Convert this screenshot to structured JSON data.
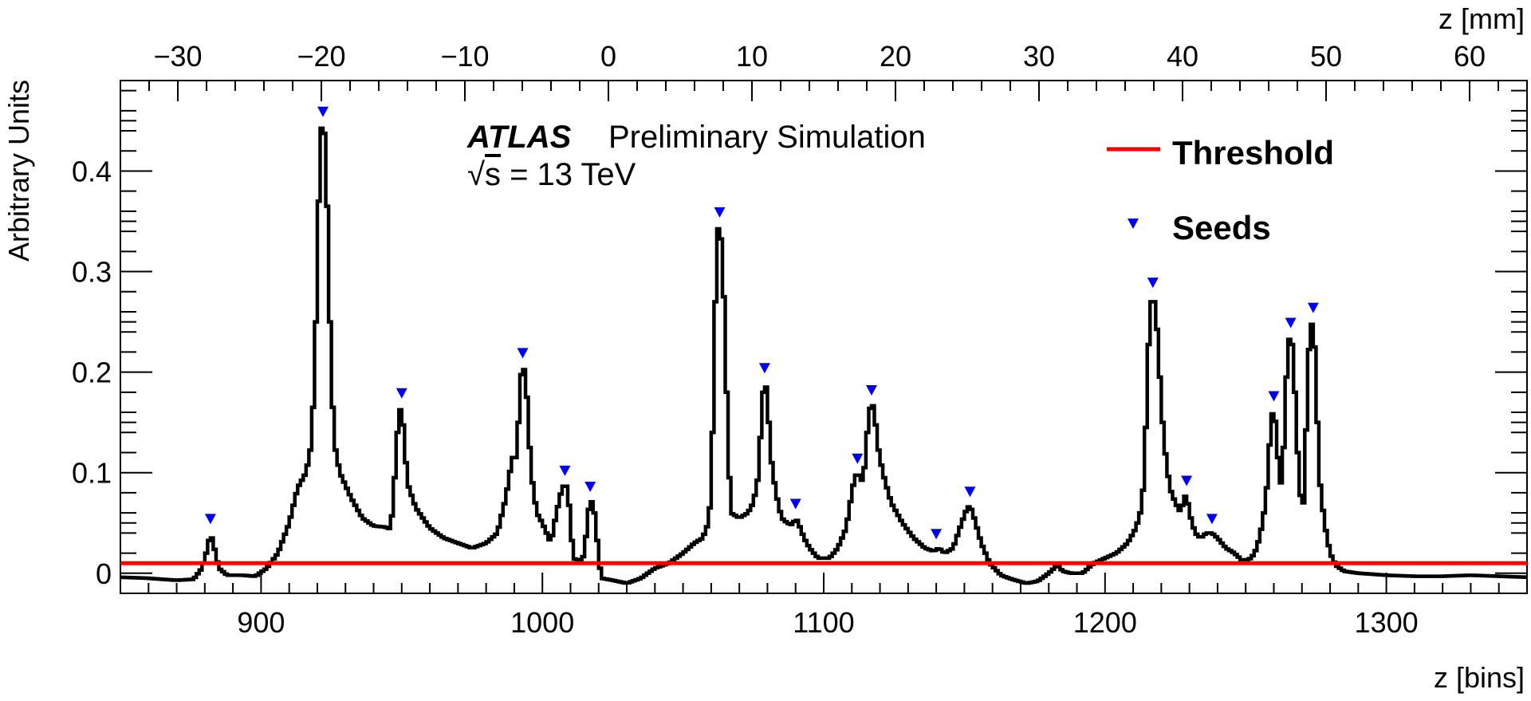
{
  "header": {
    "experiment": "ATLAS",
    "tag": "Preliminary Simulation",
    "energy_sqrt": "√",
    "energy_s": "s",
    "energy_value": " = 13 TeV"
  },
  "legend": {
    "threshold_label": "Threshold",
    "seeds_label": "Seeds"
  },
  "colors": {
    "histogram": "#000000",
    "threshold": "#ff0000",
    "seeds": "#0000ee"
  },
  "chart_data": {
    "type": "line",
    "xlabel": "z [bins]",
    "x2label": "z [mm]",
    "ylabel": "Arbitrary Units",
    "xlim": [
      850,
      1350
    ],
    "ylim": [
      -0.02,
      0.49
    ],
    "x2lim": [
      -34,
      64
    ],
    "xticks": [
      900,
      1000,
      1100,
      1200,
      1300
    ],
    "x2ticks": [
      -30,
      -20,
      -10,
      0,
      10,
      20,
      30,
      40,
      50,
      60
    ],
    "x2ticklabels": [
      "−30",
      "−20",
      "−10",
      "0",
      "10",
      "20",
      "30",
      "40",
      "50",
      "60"
    ],
    "yticks": [
      0,
      0.1,
      0.2,
      0.3,
      0.4
    ],
    "yticklabels": [
      "0",
      "0.1",
      "0.2",
      "0.3",
      "0.4"
    ],
    "threshold": 0.01,
    "legend_position": "top-right",
    "histogram_points": [
      [
        850,
        -0.004
      ],
      [
        860,
        -0.005
      ],
      [
        870,
        -0.007
      ],
      [
        876,
        -0.006
      ],
      [
        879,
        0.005
      ],
      [
        881,
        0.025
      ],
      [
        882,
        0.04
      ],
      [
        883,
        0.03
      ],
      [
        885,
        0.005
      ],
      [
        888,
        -0.002
      ],
      [
        893,
        -0.002
      ],
      [
        898,
        -0.003
      ],
      [
        902,
        0.005
      ],
      [
        906,
        0.02
      ],
      [
        910,
        0.05
      ],
      [
        913,
        0.085
      ],
      [
        916,
        0.1
      ],
      [
        918,
        0.13
      ],
      [
        919,
        0.2
      ],
      [
        920,
        0.3
      ],
      [
        921,
        0.44
      ],
      [
        922,
        0.445
      ],
      [
        923,
        0.43
      ],
      [
        924,
        0.3
      ],
      [
        925,
        0.2
      ],
      [
        926,
        0.13
      ],
      [
        928,
        0.1
      ],
      [
        932,
        0.075
      ],
      [
        936,
        0.055
      ],
      [
        940,
        0.047
      ],
      [
        944,
        0.046
      ],
      [
        946,
        0.044
      ],
      [
        947,
        0.07
      ],
      [
        948,
        0.12
      ],
      [
        949,
        0.16
      ],
      [
        950,
        0.165
      ],
      [
        951,
        0.13
      ],
      [
        952,
        0.09
      ],
      [
        955,
        0.065
      ],
      [
        960,
        0.045
      ],
      [
        965,
        0.035
      ],
      [
        970,
        0.03
      ],
      [
        975,
        0.025
      ],
      [
        980,
        0.03
      ],
      [
        984,
        0.04
      ],
      [
        987,
        0.075
      ],
      [
        989,
        0.11
      ],
      [
        990,
        0.12
      ],
      [
        991,
        0.11
      ],
      [
        992,
        0.19
      ],
      [
        993,
        0.205
      ],
      [
        994,
        0.2
      ],
      [
        995,
        0.15
      ],
      [
        996,
        0.1
      ],
      [
        998,
        0.06
      ],
      [
        1000,
        0.05
      ],
      [
        1003,
        0.03
      ],
      [
        1005,
        0.06
      ],
      [
        1007,
        0.085
      ],
      [
        1008,
        0.088
      ],
      [
        1009,
        0.085
      ],
      [
        1010,
        0.05
      ],
      [
        1011,
        0.015
      ],
      [
        1013,
        0.012
      ],
      [
        1015,
        0.018
      ],
      [
        1016,
        0.055
      ],
      [
        1017,
        0.072
      ],
      [
        1018,
        0.07
      ],
      [
        1019,
        0.05
      ],
      [
        1020,
        0.015
      ],
      [
        1021,
        -0.005
      ],
      [
        1025,
        -0.007
      ],
      [
        1030,
        -0.01
      ],
      [
        1035,
        -0.005
      ],
      [
        1040,
        0.005
      ],
      [
        1045,
        0.01
      ],
      [
        1050,
        0.02
      ],
      [
        1054,
        0.03
      ],
      [
        1057,
        0.035
      ],
      [
        1059,
        0.05
      ],
      [
        1060,
        0.08
      ],
      [
        1061,
        0.2
      ],
      [
        1062,
        0.34
      ],
      [
        1063,
        0.345
      ],
      [
        1064,
        0.32
      ],
      [
        1065,
        0.23
      ],
      [
        1066,
        0.13
      ],
      [
        1067,
        0.06
      ],
      [
        1070,
        0.055
      ],
      [
        1073,
        0.06
      ],
      [
        1075,
        0.07
      ],
      [
        1077,
        0.1
      ],
      [
        1078,
        0.17
      ],
      [
        1079,
        0.19
      ],
      [
        1080,
        0.18
      ],
      [
        1081,
        0.12
      ],
      [
        1083,
        0.08
      ],
      [
        1085,
        0.055
      ],
      [
        1087,
        0.05
      ],
      [
        1089,
        0.048
      ],
      [
        1090,
        0.055
      ],
      [
        1091,
        0.05
      ],
      [
        1093,
        0.035
      ],
      [
        1095,
        0.025
      ],
      [
        1098,
        0.015
      ],
      [
        1102,
        0.015
      ],
      [
        1105,
        0.025
      ],
      [
        1108,
        0.045
      ],
      [
        1110,
        0.08
      ],
      [
        1111,
        0.095
      ],
      [
        1112,
        0.1
      ],
      [
        1113,
        0.095
      ],
      [
        1114,
        0.09
      ],
      [
        1115,
        0.12
      ],
      [
        1116,
        0.16
      ],
      [
        1117,
        0.168
      ],
      [
        1118,
        0.165
      ],
      [
        1119,
        0.13
      ],
      [
        1121,
        0.1
      ],
      [
        1124,
        0.07
      ],
      [
        1128,
        0.05
      ],
      [
        1132,
        0.035
      ],
      [
        1136,
        0.025
      ],
      [
        1139,
        0.022
      ],
      [
        1141,
        0.025
      ],
      [
        1143,
        0.02
      ],
      [
        1146,
        0.025
      ],
      [
        1149,
        0.05
      ],
      [
        1151,
        0.065
      ],
      [
        1152,
        0.067
      ],
      [
        1153,
        0.06
      ],
      [
        1154,
        0.05
      ],
      [
        1156,
        0.03
      ],
      [
        1159,
        0.01
      ],
      [
        1163,
        -0.002
      ],
      [
        1167,
        -0.006
      ],
      [
        1172,
        -0.01
      ],
      [
        1176,
        -0.008
      ],
      [
        1180,
        0.0
      ],
      [
        1183,
        0.008
      ],
      [
        1185,
        0.002
      ],
      [
        1188,
        0.0
      ],
      [
        1192,
        0.0
      ],
      [
        1196,
        0.01
      ],
      [
        1200,
        0.015
      ],
      [
        1204,
        0.02
      ],
      [
        1208,
        0.03
      ],
      [
        1211,
        0.045
      ],
      [
        1213,
        0.065
      ],
      [
        1214,
        0.1
      ],
      [
        1215,
        0.19
      ],
      [
        1216,
        0.265
      ],
      [
        1217,
        0.275
      ],
      [
        1218,
        0.265
      ],
      [
        1219,
        0.22
      ],
      [
        1220,
        0.17
      ],
      [
        1221,
        0.13
      ],
      [
        1223,
        0.085
      ],
      [
        1225,
        0.07
      ],
      [
        1227,
        0.06
      ],
      [
        1228,
        0.075
      ],
      [
        1229,
        0.078
      ],
      [
        1230,
        0.06
      ],
      [
        1232,
        0.04
      ],
      [
        1234,
        0.035
      ],
      [
        1236,
        0.04
      ],
      [
        1238,
        0.04
      ],
      [
        1240,
        0.035
      ],
      [
        1243,
        0.025
      ],
      [
        1246,
        0.02
      ],
      [
        1249,
        0.012
      ],
      [
        1252,
        0.015
      ],
      [
        1254,
        0.025
      ],
      [
        1256,
        0.05
      ],
      [
        1257,
        0.07
      ],
      [
        1258,
        0.1
      ],
      [
        1259,
        0.155
      ],
      [
        1260,
        0.162
      ],
      [
        1261,
        0.14
      ],
      [
        1262,
        0.09
      ],
      [
        1263,
        0.09
      ],
      [
        1264,
        0.16
      ],
      [
        1265,
        0.23
      ],
      [
        1266,
        0.235
      ],
      [
        1267,
        0.22
      ],
      [
        1268,
        0.14
      ],
      [
        1269,
        0.1
      ],
      [
        1270,
        0.055
      ],
      [
        1271,
        0.085
      ],
      [
        1272,
        0.2
      ],
      [
        1273,
        0.245
      ],
      [
        1274,
        0.25
      ],
      [
        1275,
        0.2
      ],
      [
        1276,
        0.1
      ],
      [
        1278,
        0.05
      ],
      [
        1280,
        0.02
      ],
      [
        1282,
        0.008
      ],
      [
        1285,
        0.002
      ],
      [
        1290,
        0.0
      ],
      [
        1300,
        -0.002
      ],
      [
        1310,
        -0.003
      ],
      [
        1320,
        -0.003
      ],
      [
        1330,
        -0.002
      ],
      [
        1340,
        -0.003
      ],
      [
        1350,
        -0.004
      ]
    ],
    "seeds": [
      [
        882,
        0.04
      ],
      [
        922,
        0.445
      ],
      [
        950,
        0.165
      ],
      [
        993,
        0.205
      ],
      [
        1008,
        0.088
      ],
      [
        1017,
        0.072
      ],
      [
        1063,
        0.345
      ],
      [
        1079,
        0.19
      ],
      [
        1090,
        0.055
      ],
      [
        1112,
        0.1
      ],
      [
        1117,
        0.168
      ],
      [
        1140,
        0.025
      ],
      [
        1152,
        0.067
      ],
      [
        1217,
        0.275
      ],
      [
        1229,
        0.078
      ],
      [
        1238,
        0.04
      ],
      [
        1260,
        0.162
      ],
      [
        1266,
        0.235
      ],
      [
        1274,
        0.25
      ]
    ]
  }
}
